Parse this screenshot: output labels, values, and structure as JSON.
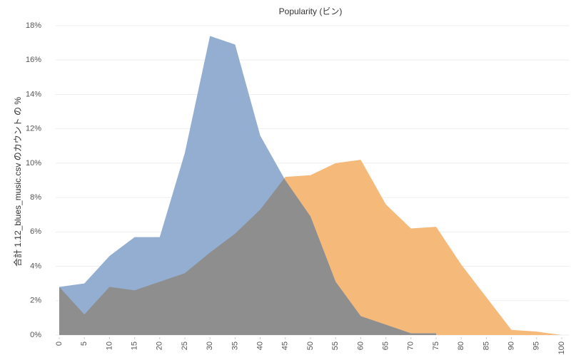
{
  "chart_data": {
    "type": "area",
    "title": "Popularity (ビン)",
    "y_label": "合計 1.12_blues_music.csv のカウント の %",
    "x": [
      0,
      5,
      10,
      15,
      20,
      25,
      30,
      35,
      40,
      45,
      50,
      55,
      60,
      65,
      70,
      75,
      80,
      85,
      90,
      95,
      100
    ],
    "series": [
      {
        "color": "#f5b97a",
        "values": [
          2.8,
          1.2,
          2.8,
          2.6,
          3.1,
          3.6,
          4.8,
          5.9,
          7.3,
          9.2,
          9.3,
          10.0,
          10.2,
          7.6,
          6.2,
          6.3,
          4.1,
          2.2,
          0.3,
          0.2,
          0.0
        ]
      },
      {
        "color": "#93aed0",
        "values": [
          2.8,
          3.0,
          4.6,
          5.7,
          5.7,
          10.6,
          17.4,
          16.9,
          11.6,
          9.0,
          6.9,
          3.1,
          1.1,
          0.6,
          0.1,
          0.1,
          null,
          null,
          null,
          null,
          null
        ]
      }
    ],
    "overlap_color": "#8e8e8e",
    "xlim": [
      0,
      100
    ],
    "xticks": [
      0,
      5,
      10,
      15,
      20,
      25,
      30,
      35,
      40,
      45,
      50,
      55,
      60,
      65,
      70,
      75,
      80,
      85,
      90,
      95,
      100
    ],
    "ylim": [
      0,
      18
    ],
    "yticks": [
      {
        "value": 0,
        "label": "0%"
      },
      {
        "value": 2,
        "label": "2%"
      },
      {
        "value": 4,
        "label": "4%"
      },
      {
        "value": 6,
        "label": "6%"
      },
      {
        "value": 8,
        "label": "8%"
      },
      {
        "value": 10,
        "label": "10%"
      },
      {
        "value": 12,
        "label": "12%"
      },
      {
        "value": 14,
        "label": "14%"
      },
      {
        "value": 16,
        "label": "16%"
      },
      {
        "value": 18,
        "label": "18%"
      }
    ],
    "grid": true
  }
}
